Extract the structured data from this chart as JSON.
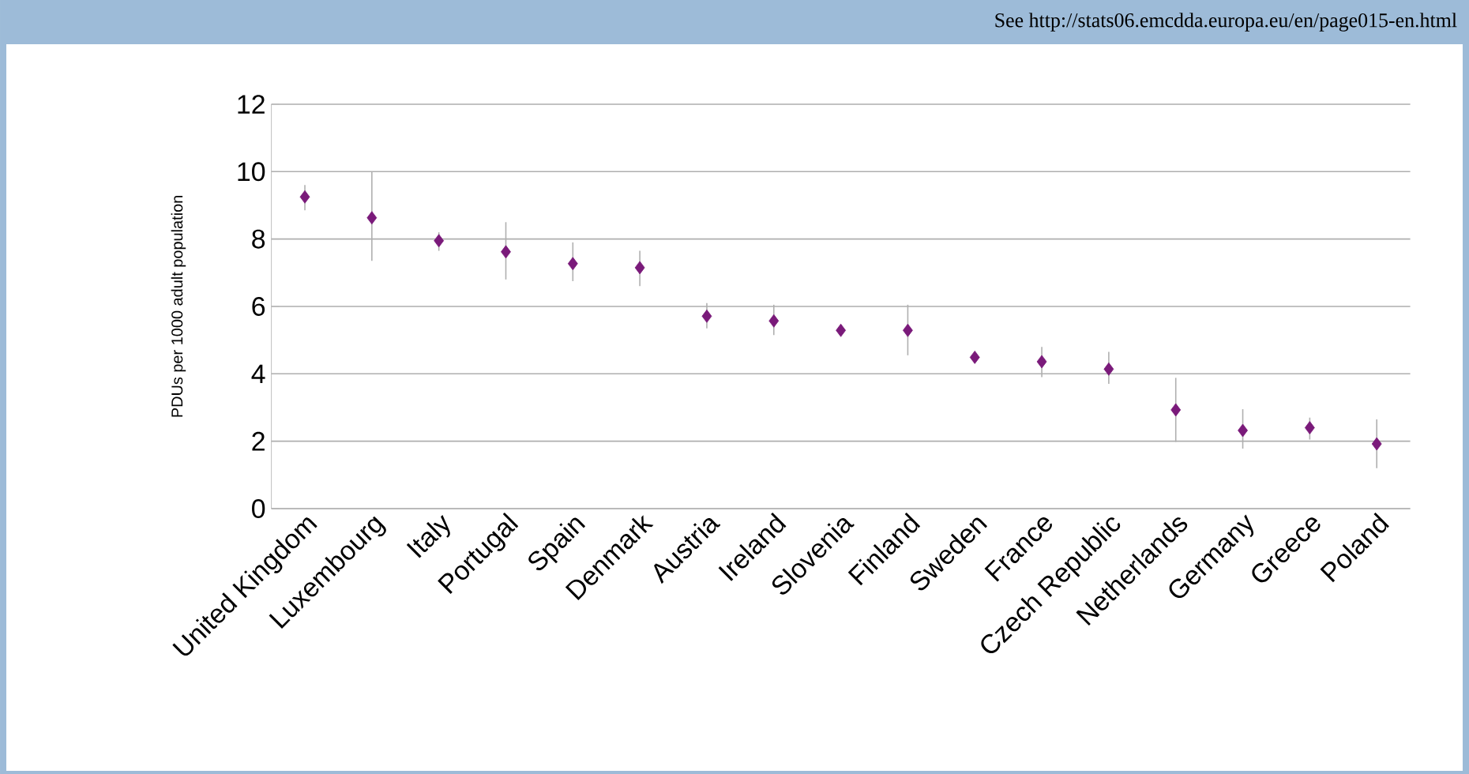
{
  "chart_data": {
    "type": "scatter",
    "ylabel": "PDUs per 1000 adult population",
    "annotations": [
      "See http://stats06.emcdda.europa.eu/en/page015-en.html"
    ],
    "categories": [
      "United Kingdom",
      "Luxembourg",
      "Italy",
      "Portugal",
      "Spain",
      "Denmark",
      "Austria",
      "Ireland",
      "Slovenia",
      "Finland",
      "Sweden",
      "France",
      "Czech Republic",
      "Netherlands",
      "Germany",
      "Greece",
      "Poland"
    ],
    "values": [
      9.25,
      8.63,
      7.95,
      7.62,
      7.27,
      7.15,
      5.71,
      5.57,
      5.29,
      5.29,
      4.49,
      4.36,
      4.14,
      2.93,
      2.32,
      2.4,
      1.92
    ],
    "errors": [
      [
        8.85,
        9.6
      ],
      [
        7.35,
        10.0
      ],
      [
        7.65,
        8.2
      ],
      [
        6.8,
        8.5
      ],
      [
        6.75,
        7.9
      ],
      [
        6.6,
        7.65
      ],
      [
        5.35,
        6.1
      ],
      [
        5.15,
        6.05
      ],
      null,
      [
        4.55,
        6.05
      ],
      null,
      [
        3.9,
        4.8
      ],
      [
        3.7,
        4.65
      ],
      [
        1.98,
        3.88
      ],
      [
        1.78,
        2.95
      ],
      [
        2.05,
        2.7
      ],
      [
        1.2,
        2.65
      ]
    ],
    "color": "#7a1a7a",
    "marker": "diamond",
    "grid": "y",
    "ylim": [
      0,
      12
    ],
    "yticks": [
      0,
      2,
      4,
      6,
      8,
      10,
      12
    ]
  }
}
